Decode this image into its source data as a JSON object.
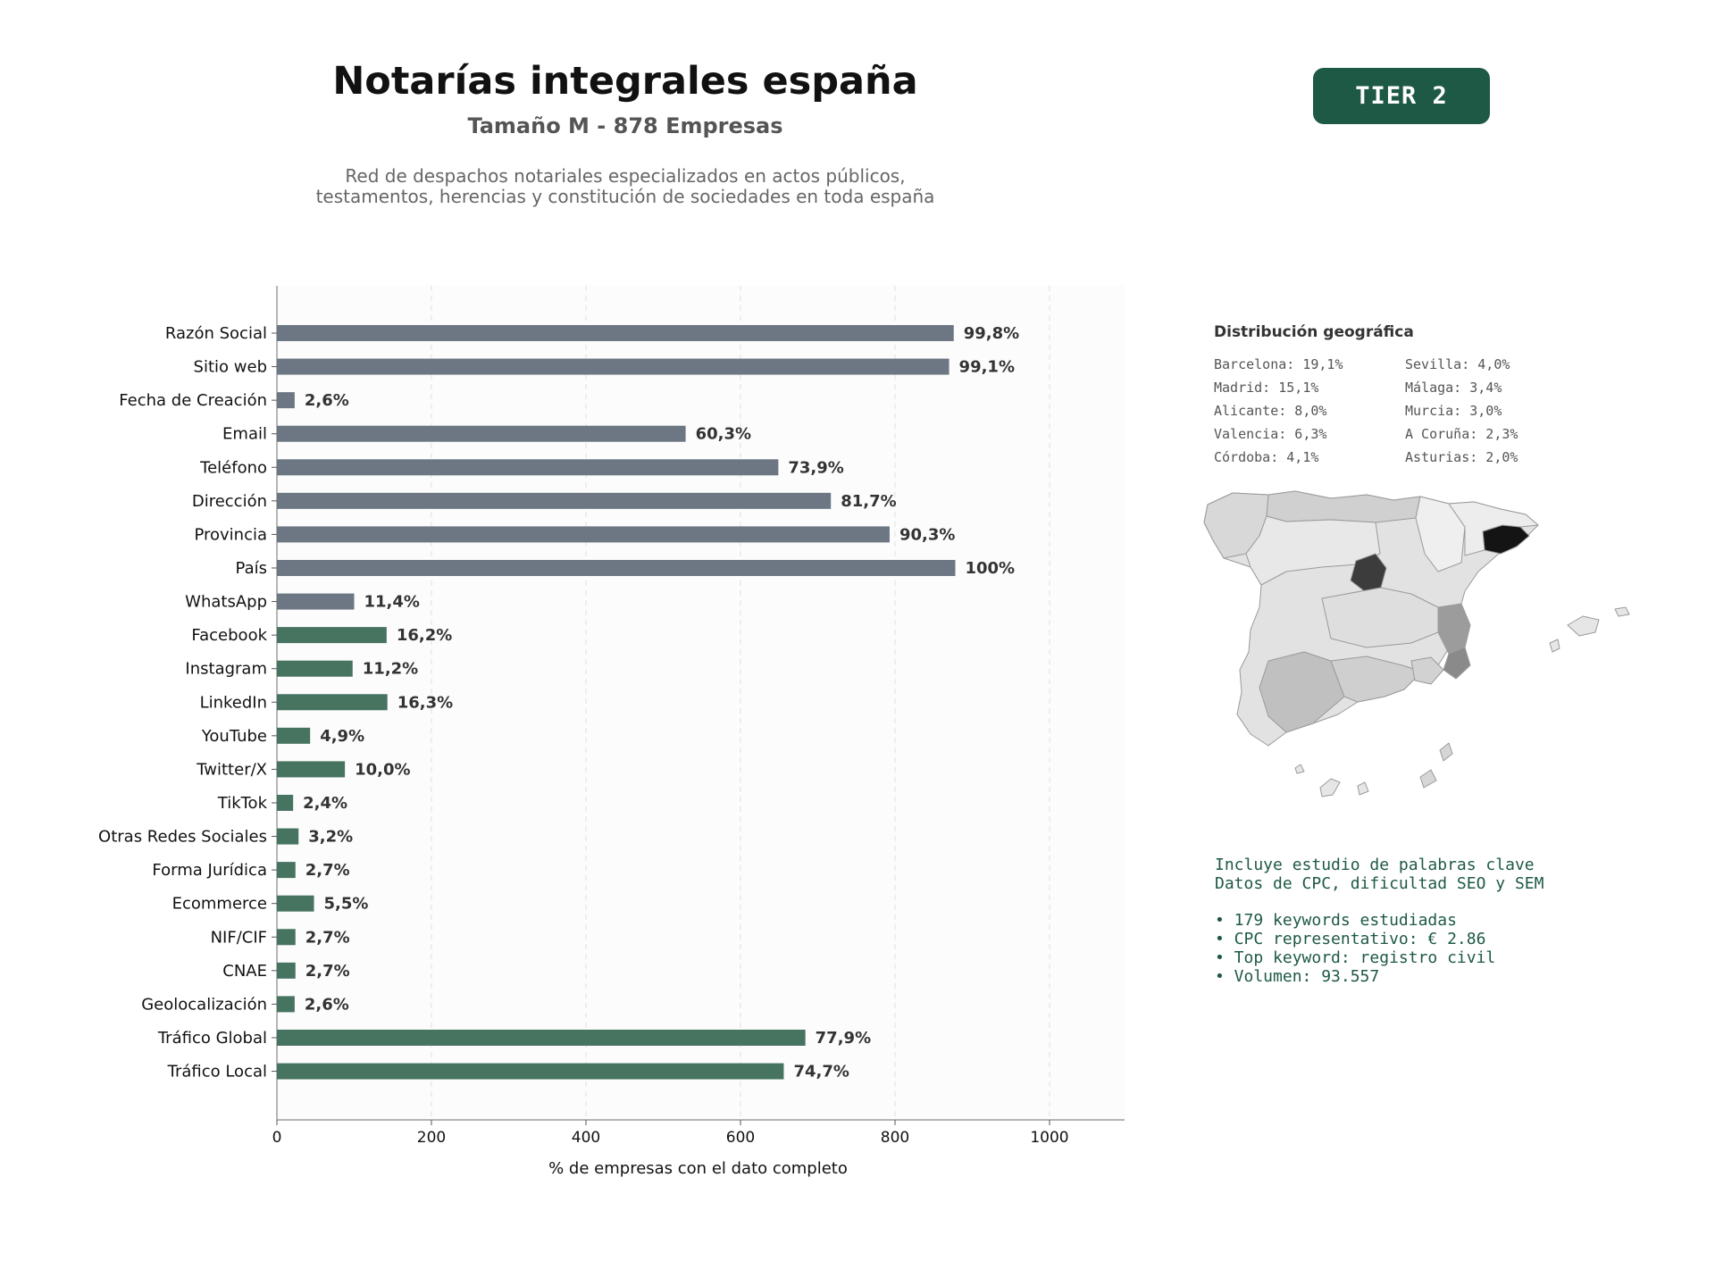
{
  "header": {
    "title": "Notarías integrales españa",
    "subtitle": "Tamaño M - 878 Empresas",
    "description_lines": [
      "Red de despachos notariales especializados en actos públicos,",
      "testamentos, herencias y constitución de sociedades en toda españa"
    ],
    "tier": "TIER 2"
  },
  "chart_data": {
    "type": "bar",
    "orientation": "horizontal",
    "categories": [
      "Razón Social",
      "Sitio web",
      "Fecha de Creación",
      "Email",
      "Teléfono",
      "Dirección",
      "Provincia",
      "País",
      "WhatsApp",
      "Facebook",
      "Instagram",
      "LinkedIn",
      "YouTube",
      "Twitter/X",
      "TikTok",
      "Otras Redes Sociales",
      "Forma Jurídica",
      "Ecommerce",
      "NIF/CIF",
      "CNAE",
      "Geolocalización",
      "Tráfico Global",
      "Tráfico Local"
    ],
    "values": [
      876,
      870,
      23,
      529,
      649,
      717,
      793,
      878,
      100,
      142,
      98,
      143,
      43,
      88,
      21,
      28,
      24,
      48,
      24,
      24,
      23,
      684,
      656
    ],
    "value_labels": [
      "99,8%",
      "99,1%",
      "2,6%",
      "60,3%",
      "73,9%",
      "81,7%",
      "90,3%",
      "100%",
      "11,4%",
      "16,2%",
      "11,2%",
      "16,3%",
      "4,9%",
      "10,0%",
      "2,4%",
      "3,2%",
      "2,7%",
      "5,5%",
      "2,7%",
      "2,7%",
      "2,6%",
      "77,9%",
      "74,7%"
    ],
    "bar_colors": [
      "#6c7783",
      "#6c7783",
      "#6c7783",
      "#6c7783",
      "#6c7783",
      "#6c7783",
      "#6c7783",
      "#6c7783",
      "#6c7783",
      "#477361",
      "#477361",
      "#477361",
      "#477361",
      "#477361",
      "#477361",
      "#477361",
      "#477361",
      "#477361",
      "#477361",
      "#477361",
      "#477361",
      "#477361",
      "#477361"
    ],
    "xlabel": "% de empresas con el dato completo",
    "ylabel": "",
    "xlim": [
      0,
      1097
    ],
    "xticks": [
      0,
      200,
      400,
      600,
      800,
      1000
    ],
    "grid": "vertical dashed"
  },
  "geo": {
    "title": "Distribución geográfica",
    "items": [
      "Barcelona: 19,1%",
      "Sevilla: 4,0%",
      "Madrid: 15,1%",
      "Málaga: 3,4%",
      "Alicante: 8,0%",
      "Murcia: 3,0%",
      "Valencia: 6,3%",
      "A Coruña: 2,3%",
      "Córdoba: 4,1%",
      "Asturias: 2,0%"
    ]
  },
  "keywords": {
    "intro": [
      "Incluye estudio de palabras clave",
      "Datos de CPC, dificultad SEO y SEM"
    ],
    "bullets": [
      "• 179 keywords estudiadas",
      "• CPC representativo: € 2.86",
      "• Top keyword: registro civil",
      "• Volumen: 93.557"
    ]
  }
}
